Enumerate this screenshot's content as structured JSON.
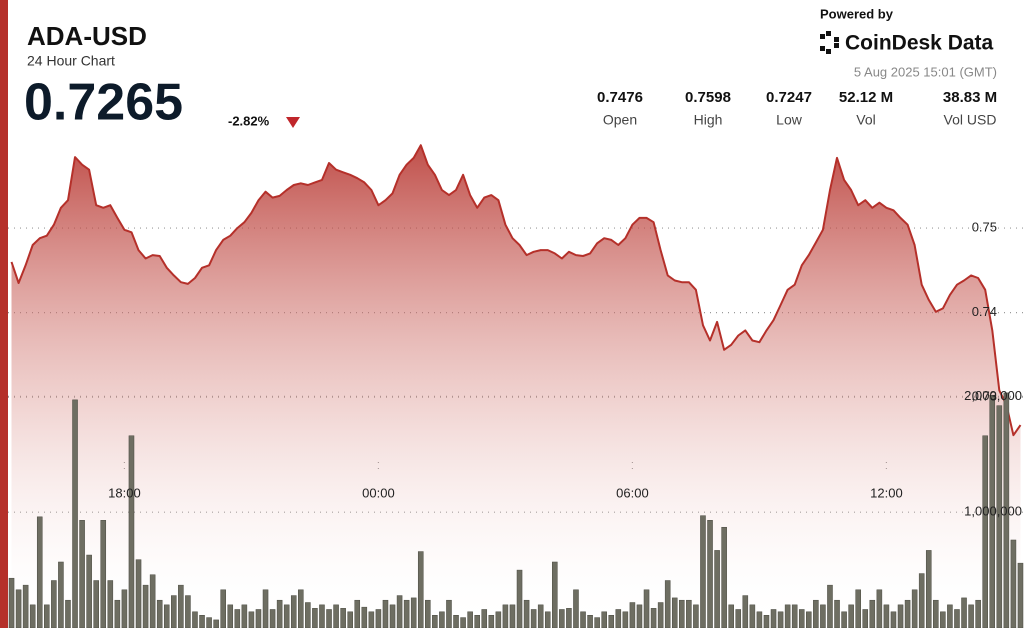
{
  "header": {
    "title": "ADA-USD",
    "subtitle": "24 Hour Chart",
    "price": "0.7265",
    "change": "-2.82%",
    "powered_by": "Powered by",
    "brand": "CoinDesk Data",
    "timestamp": "5 Aug 2025 15:01 (GMT)"
  },
  "stats": [
    {
      "value": "0.7476",
      "label": "Open"
    },
    {
      "value": "0.7598",
      "label": "High"
    },
    {
      "value": "0.7247",
      "label": "Low"
    },
    {
      "value": "52.12 M",
      "label": "Vol"
    },
    {
      "value": "38.83 M",
      "label": "Vol USD"
    }
  ],
  "chart_data": {
    "type": "line",
    "categories": [
      null,
      null,
      null,
      null,
      null,
      null,
      null,
      null,
      null,
      null,
      null,
      null,
      null,
      null,
      null,
      null,
      "18:00",
      null,
      null,
      null,
      null,
      null,
      null,
      null,
      null,
      null,
      null,
      null,
      null,
      null,
      null,
      null,
      null,
      null,
      null,
      null,
      null,
      null,
      null,
      null,
      null,
      null,
      null,
      null,
      null,
      null,
      null,
      null,
      null,
      null,
      null,
      null,
      "00:00",
      null,
      null,
      null,
      null,
      null,
      null,
      null,
      null,
      null,
      null,
      null,
      null,
      null,
      null,
      null,
      null,
      null,
      null,
      null,
      null,
      null,
      null,
      null,
      null,
      null,
      null,
      null,
      null,
      null,
      null,
      null,
      null,
      null,
      null,
      null,
      "06:00",
      null,
      null,
      null,
      null,
      null,
      null,
      null,
      null,
      null,
      null,
      null,
      null,
      null,
      null,
      null,
      null,
      null,
      null,
      null,
      null,
      null,
      null,
      null,
      null,
      null,
      null,
      null,
      null,
      null,
      null,
      null,
      null,
      null,
      null,
      null,
      "12:00",
      null,
      null,
      null,
      null,
      null,
      null,
      null,
      null,
      null,
      null,
      null,
      null,
      null,
      null,
      null,
      null,
      null,
      null,
      null
    ],
    "series": [
      {
        "name": "Price",
        "type": "line",
        "color": "#b5302a",
        "values": [
          0.746,
          0.7435,
          0.7456,
          0.748,
          0.7488,
          0.7491,
          0.7504,
          0.7524,
          0.7533,
          0.7584,
          0.7575,
          0.7569,
          0.7527,
          0.7524,
          0.7527,
          0.7512,
          0.7498,
          0.7495,
          0.7474,
          0.7464,
          0.7468,
          0.7467,
          0.7453,
          0.7444,
          0.7436,
          0.7434,
          0.7441,
          0.7453,
          0.7456,
          0.7474,
          0.7486,
          0.7491,
          0.75,
          0.7507,
          0.7518,
          0.7533,
          0.7543,
          0.7536,
          0.7538,
          0.7545,
          0.7551,
          0.7553,
          0.7551,
          0.7554,
          0.7557,
          0.7577,
          0.7569,
          0.7566,
          0.7563,
          0.7559,
          0.7554,
          0.7545,
          0.7527,
          0.7533,
          0.7541,
          0.7563,
          0.7575,
          0.7583,
          0.7598,
          0.7575,
          0.7563,
          0.7545,
          0.7539,
          0.7545,
          0.7563,
          0.7539,
          0.7524,
          0.7536,
          0.7539,
          0.7533,
          0.7504,
          0.7488,
          0.748,
          0.7468,
          0.7472,
          0.7474,
          0.7474,
          0.747,
          0.7464,
          0.7472,
          0.7468,
          0.7467,
          0.747,
          0.7482,
          0.7488,
          0.7486,
          0.748,
          0.7488,
          0.7504,
          0.7512,
          0.7512,
          0.7507,
          0.7474,
          0.7444,
          0.7438,
          0.7436,
          0.7436,
          0.7427,
          0.7385,
          0.7367,
          0.7389,
          0.7356,
          0.7362,
          0.7373,
          0.7379,
          0.7367,
          0.7365,
          0.7379,
          0.7391,
          0.7409,
          0.7427,
          0.7433,
          0.7456,
          0.7468,
          0.7483,
          0.7498,
          0.7545,
          0.7583,
          0.7557,
          0.7545,
          0.7527,
          0.7533,
          0.7524,
          0.753,
          0.7524,
          0.7521,
          0.7512,
          0.7504,
          0.748,
          0.7433,
          0.7415,
          0.7401,
          0.7405,
          0.7421,
          0.7433,
          0.7438,
          0.7444,
          0.7441,
          0.7427,
          0.7379,
          0.7308,
          0.7291,
          0.7255,
          0.7267
        ]
      },
      {
        "name": "Volume",
        "type": "bar",
        "axis": "y2",
        "color": "#6e6e62",
        "values": [
          430000,
          330000,
          370000,
          200000,
          960000,
          200000,
          410000,
          570000,
          240000,
          1970000,
          930000,
          630000,
          410000,
          930000,
          410000,
          240000,
          330000,
          1660000,
          590000,
          370000,
          460000,
          240000,
          200000,
          280000,
          370000,
          280000,
          140000,
          110000,
          90000,
          70000,
          330000,
          200000,
          160000,
          200000,
          140000,
          160000,
          330000,
          160000,
          240000,
          200000,
          280000,
          330000,
          220000,
          170000,
          200000,
          160000,
          200000,
          170000,
          140000,
          240000,
          180000,
          140000,
          160000,
          240000,
          200000,
          280000,
          240000,
          260000,
          660000,
          240000,
          110000,
          140000,
          240000,
          110000,
          90000,
          140000,
          110000,
          160000,
          110000,
          140000,
          200000,
          200000,
          500000,
          240000,
          160000,
          200000,
          140000,
          570000,
          160000,
          170000,
          330000,
          140000,
          110000,
          90000,
          140000,
          110000,
          160000,
          140000,
          220000,
          200000,
          330000,
          170000,
          220000,
          410000,
          260000,
          240000,
          240000,
          200000,
          970000,
          930000,
          670000,
          870000,
          200000,
          160000,
          280000,
          200000,
          140000,
          110000,
          160000,
          140000,
          200000,
          200000,
          160000,
          140000,
          240000,
          200000,
          370000,
          240000,
          140000,
          200000,
          330000,
          160000,
          240000,
          330000,
          200000,
          140000,
          200000,
          240000,
          330000,
          470000,
          670000,
          240000,
          140000,
          200000,
          160000,
          260000,
          200000,
          240000,
          1660000,
          2010000,
          1920000,
          2030000,
          760000,
          560000
        ]
      }
    ],
    "ylim": [
      0.7027,
      0.7616
    ],
    "yticks": [
      0.73,
      0.74,
      0.75
    ],
    "y2lim": [
      0,
      4300000
    ],
    "y2ticks": [
      {
        "value": 1000000,
        "label": "1,000,000"
      },
      {
        "value": 2000000,
        "label": "2,000,000"
      }
    ],
    "grid": true
  }
}
